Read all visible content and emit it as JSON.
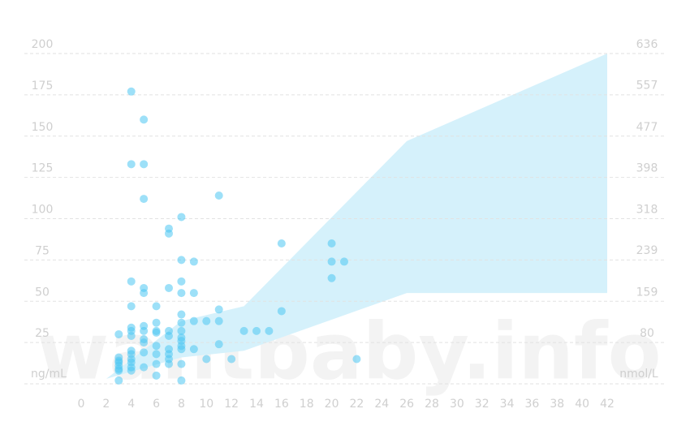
{
  "chart_data": {
    "type": "scatter",
    "watermark": "wantbaby.info",
    "y_label": "ng/mL",
    "y2_label": "nmol/L",
    "xlim": [
      0,
      42
    ],
    "xticks": [
      0,
      2,
      4,
      6,
      8,
      10,
      12,
      14,
      16,
      18,
      20,
      22,
      24,
      26,
      28,
      30,
      32,
      34,
      36,
      38,
      40,
      42
    ],
    "ylim": [
      0,
      200
    ],
    "yticks": [
      25,
      50,
      75,
      100,
      125,
      150,
      175,
      200
    ],
    "y2lim": [
      0,
      636
    ],
    "y2ticks": [
      80,
      159,
      239,
      318,
      398,
      477,
      557,
      636
    ],
    "grid": true,
    "band": {
      "color": "#d5f1fb",
      "x": [
        2,
        8,
        13,
        26,
        42
      ],
      "upper": [
        3,
        38,
        47,
        147,
        200
      ],
      "lower": [
        3,
        16,
        20,
        55,
        55
      ]
    },
    "series": [
      {
        "color": "#4cc6f3",
        "x": [
          3,
          3,
          3,
          3,
          3,
          3,
          3,
          3,
          4,
          4,
          4,
          4,
          4,
          4,
          4,
          4,
          4,
          4,
          4,
          4,
          4,
          5,
          5,
          5,
          5,
          5,
          5,
          5,
          5,
          5,
          5,
          5,
          6,
          6,
          6,
          6,
          6,
          6,
          6,
          6,
          7,
          7,
          7,
          7,
          7,
          7,
          7,
          7,
          7,
          8,
          8,
          8,
          8,
          8,
          8,
          8,
          8,
          8,
          8,
          8,
          8,
          8,
          9,
          9,
          9,
          9,
          10,
          10,
          11,
          11,
          11,
          11,
          12,
          13,
          14,
          15,
          16,
          16,
          20,
          20,
          20,
          21,
          22
        ],
        "y": [
          30,
          16,
          14,
          13,
          11,
          9,
          8,
          2,
          177,
          133,
          62,
          47,
          34,
          32,
          29,
          20,
          18,
          15,
          13,
          10,
          8,
          160,
          133,
          112,
          58,
          55,
          35,
          32,
          27,
          25,
          19,
          10,
          47,
          37,
          32,
          31,
          23,
          18,
          12,
          5,
          94,
          91,
          58,
          32,
          29,
          21,
          18,
          15,
          12,
          101,
          75,
          62,
          55,
          42,
          37,
          32,
          28,
          26,
          23,
          21,
          12,
          2,
          74,
          55,
          38,
          21,
          38,
          15,
          114,
          45,
          38,
          24,
          15,
          32,
          32,
          32,
          85,
          44,
          85,
          74,
          64,
          74,
          15
        ]
      }
    ]
  }
}
